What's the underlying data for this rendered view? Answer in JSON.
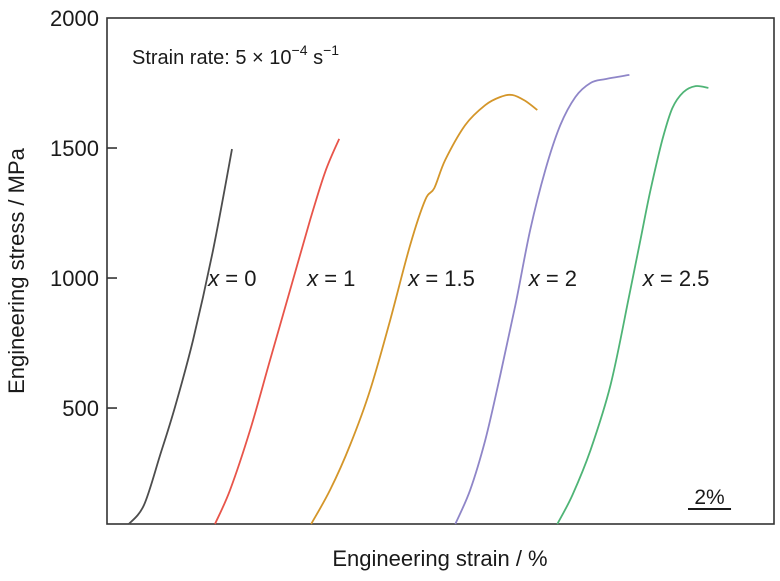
{
  "chart_data": {
    "type": "line",
    "title": "",
    "annotation": {
      "prefix": "Strain rate: 5 × 10",
      "exponent": "−4",
      "unit": " s",
      "unit_exponent": "−1"
    },
    "xlabel": "Engineering strain / %",
    "ylabel": "Engineering stress / MPa",
    "xlim": [
      0,
      31.0
    ],
    "ylim": [
      54,
      2000
    ],
    "x_ticks_shown": false,
    "y_ticks": [
      500,
      1000,
      1500,
      2000
    ],
    "y_tick_labels": [
      "500",
      "1000",
      "1500",
      "2000"
    ],
    "grid": false,
    "legend": "none (inline labels)",
    "scale_bar": {
      "label": "2%",
      "length_percent_strain": 2
    },
    "series": [
      {
        "name": "x = 0",
        "label_var": "x",
        "label_rest": " = 0",
        "color": "#4d4d4d",
        "x": [
          1.02,
          1.72,
          2.47,
          3.16,
          4.0,
          4.93,
          5.81
        ],
        "y": [
          54,
          127,
          319,
          504,
          762,
          1108,
          1496
        ]
      },
      {
        "name": "x = 1",
        "label_var": "x",
        "label_rest": " = 1",
        "color": "#e8554a",
        "x": [
          5.02,
          5.72,
          6.65,
          7.58,
          8.51,
          9.44,
          10.14,
          10.79
        ],
        "y": [
          54,
          185,
          415,
          685,
          954,
          1223,
          1408,
          1535
        ]
      },
      {
        "name": "x = 1.5",
        "label_var": "x",
        "label_rest": " = 1.5",
        "color": "#d4962a",
        "x": [
          9.49,
          10.37,
          11.3,
          12.23,
          13.16,
          14.09,
          14.79,
          15.21,
          15.72,
          16.65,
          17.58,
          18.28,
          18.84,
          19.44,
          20.0
        ],
        "y": [
          54,
          185,
          358,
          569,
          838,
          1127,
          1300,
          1346,
          1454,
          1588,
          1665,
          1696,
          1704,
          1681,
          1646
        ]
      },
      {
        "name": "x = 2",
        "label_var": "x",
        "label_rest": " = 2",
        "color": "#8f86c8",
        "x": [
          16.19,
          16.88,
          17.58,
          18.28,
          18.98,
          19.67,
          20.37,
          21.07,
          21.77,
          22.47,
          23.16,
          24.28
        ],
        "y": [
          54,
          185,
          377,
          627,
          896,
          1185,
          1415,
          1588,
          1696,
          1750,
          1765,
          1781
        ]
      },
      {
        "name": "x = 2.5",
        "label_var": "x",
        "label_rest": " = 2.5",
        "color": "#4fb476",
        "x": [
          20.93,
          21.63,
          22.47,
          23.4,
          24.23,
          24.79,
          25.26,
          25.81,
          26.28,
          26.79,
          27.35,
          27.95
        ],
        "y": [
          54,
          165,
          338,
          588,
          915,
          1146,
          1338,
          1531,
          1654,
          1715,
          1738,
          1731
        ]
      }
    ],
    "series_label_positions": [
      {
        "x": 4.7,
        "y": 1000
      },
      {
        "x": 9.3,
        "y": 1000
      },
      {
        "x": 14.0,
        "y": 1000
      },
      {
        "x": 19.6,
        "y": 1000
      },
      {
        "x": 24.9,
        "y": 1000
      }
    ]
  }
}
